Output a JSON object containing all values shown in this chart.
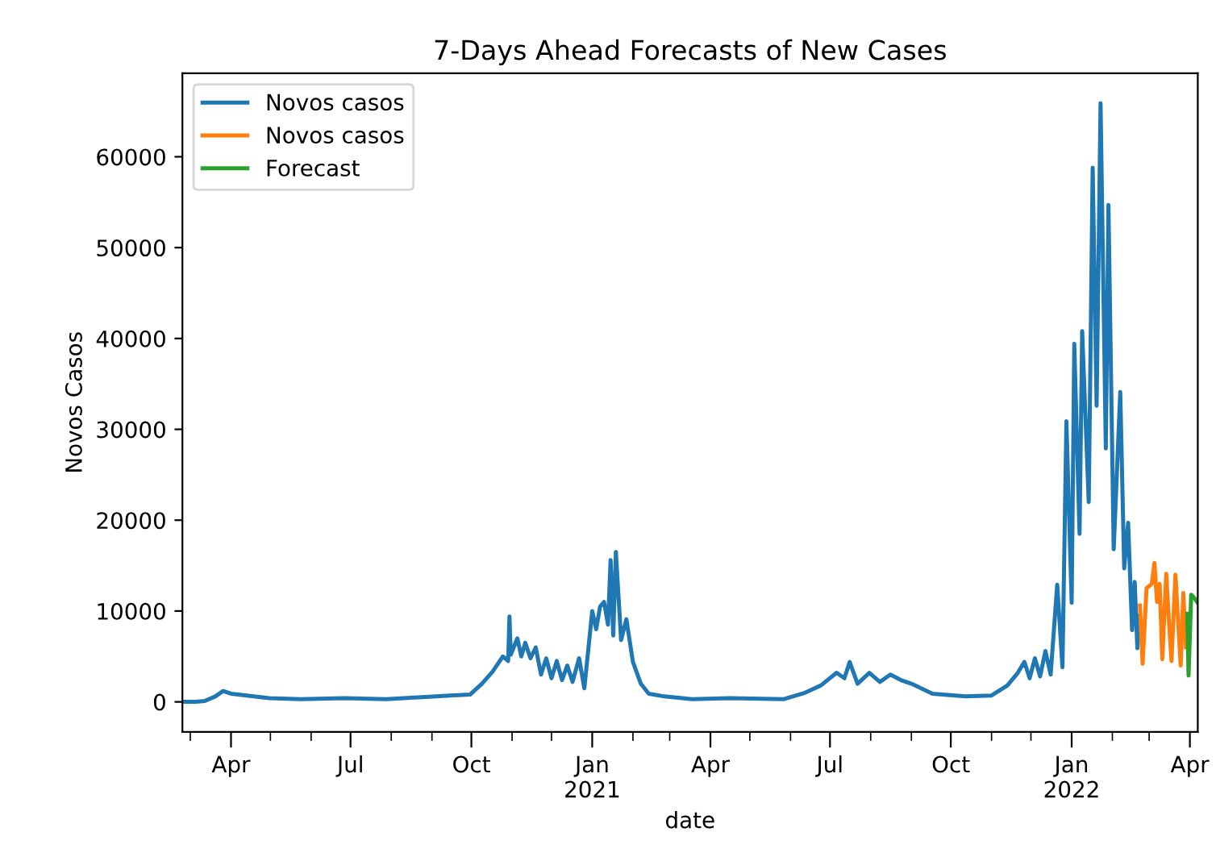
{
  "chart_data": {
    "type": "line",
    "title": "7-Days Ahead Forecasts of New Cases",
    "xlabel": "date",
    "ylabel": "Novos Casos",
    "series": [
      {
        "name": "Novos casos",
        "color": "#1f77b4",
        "x": [
          "2020-02-24",
          "2020-03-05",
          "2020-03-12",
          "2020-03-20",
          "2020-03-26",
          "2020-04-01",
          "2020-04-13",
          "2020-04-30",
          "2020-05-24",
          "2020-06-26",
          "2020-07-28",
          "2020-08-22",
          "2020-09-15",
          "2020-09-30",
          "2020-10-09",
          "2020-10-17",
          "2020-10-25",
          "2020-10-29",
          "2020-10-30",
          "2020-10-31",
          "2020-11-05",
          "2020-11-08",
          "2020-11-11",
          "2020-11-15",
          "2020-11-19",
          "2020-11-23",
          "2020-11-27",
          "2020-12-01",
          "2020-12-05",
          "2020-12-09",
          "2020-12-13",
          "2020-12-17",
          "2020-12-22",
          "2020-12-26",
          "2021-01-01",
          "2021-01-04",
          "2021-01-07",
          "2021-01-10",
          "2021-01-13",
          "2021-01-15",
          "2021-01-17",
          "2021-01-19",
          "2021-01-23",
          "2021-01-27",
          "2021-02-01",
          "2021-02-07",
          "2021-02-13",
          "2021-02-25",
          "2021-03-18",
          "2021-04-16",
          "2021-05-27",
          "2021-06-12",
          "2021-06-24",
          "2021-07-06",
          "2021-07-12",
          "2021-07-16",
          "2021-07-22",
          "2021-07-31",
          "2021-08-08",
          "2021-08-16",
          "2021-08-24",
          "2021-09-01",
          "2021-09-17",
          "2021-10-12",
          "2021-11-01",
          "2021-11-13",
          "2021-11-21",
          "2021-11-26",
          "2021-11-30",
          "2021-12-04",
          "2021-12-08",
          "2021-12-12",
          "2021-12-16",
          "2021-12-21",
          "2021-12-25",
          "2021-12-28",
          "2022-01-01",
          "2022-01-03",
          "2022-01-07",
          "2022-01-09",
          "2022-01-14",
          "2022-01-17",
          "2022-01-20",
          "2022-01-23",
          "2022-01-27",
          "2022-01-29",
          "2022-02-02",
          "2022-02-07",
          "2022-02-10",
          "2022-02-13",
          "2022-02-16",
          "2022-02-18",
          "2022-02-20",
          "2022-02-21"
        ],
        "values": [
          0,
          0,
          100,
          600,
          1200,
          900,
          700,
          400,
          300,
          400,
          300,
          500,
          700,
          800,
          2000,
          3300,
          5000,
          4500,
          9400,
          5200,
          7000,
          5000,
          6500,
          4800,
          6000,
          3000,
          4800,
          2600,
          4500,
          2400,
          4000,
          2200,
          4800,
          1500,
          10000,
          8000,
          10500,
          11000,
          8500,
          15600,
          7300,
          16500,
          6800,
          9100,
          4400,
          2000,
          900,
          600,
          300,
          400,
          300,
          1000,
          1800,
          3200,
          2600,
          4400,
          2000,
          3200,
          2200,
          3000,
          2400,
          2000,
          900,
          600,
          700,
          1800,
          3200,
          4400,
          2600,
          4800,
          2800,
          5600,
          3000,
          12900,
          3800,
          30900,
          10900,
          39400,
          18500,
          40800,
          22000,
          58800,
          32600,
          65900,
          27900,
          54700,
          16800,
          34100,
          14700,
          19700,
          7900,
          13200,
          5900,
          9500
        ]
      },
      {
        "name": "Novos casos",
        "color": "#ff7f0e",
        "x": [
          "2022-02-22",
          "2022-02-24",
          "2022-02-27",
          "2022-03-03",
          "2022-03-05",
          "2022-03-07",
          "2022-03-09",
          "2022-03-11",
          "2022-03-14",
          "2022-03-16",
          "2022-03-18",
          "2022-03-21",
          "2022-03-23",
          "2022-03-25",
          "2022-03-27",
          "2022-03-29"
        ],
        "values": [
          10600,
          4200,
          12500,
          13000,
          15300,
          11000,
          13000,
          4700,
          14100,
          9000,
          4500,
          14000,
          9000,
          4000,
          12000,
          6000
        ]
      },
      {
        "name": "Forecast",
        "color": "#2ca02c",
        "x": [
          "2022-03-30",
          "2022-03-31",
          "2022-04-02",
          "2022-04-04",
          "2022-04-07"
        ],
        "values": [
          9700,
          2900,
          11800,
          11500,
          10900
        ]
      }
    ],
    "xlim": [
      "2020-02-24",
      "2022-04-07"
    ],
    "xticks": [
      {
        "value": "2020-03-01",
        "label": null
      },
      {
        "value": "2020-04-01",
        "label": "Apr"
      },
      {
        "value": "2020-05-01",
        "label": null
      },
      {
        "value": "2020-06-01",
        "label": null
      },
      {
        "value": "2020-07-01",
        "label": "Jul"
      },
      {
        "value": "2020-08-01",
        "label": null
      },
      {
        "value": "2020-09-01",
        "label": null
      },
      {
        "value": "2020-10-01",
        "label": "Oct"
      },
      {
        "value": "2020-11-01",
        "label": null
      },
      {
        "value": "2020-12-01",
        "label": null
      },
      {
        "value": "2021-01-01",
        "label": "Jan\n2021"
      },
      {
        "value": "2021-02-01",
        "label": null
      },
      {
        "value": "2021-03-01",
        "label": null
      },
      {
        "value": "2021-04-01",
        "label": "Apr"
      },
      {
        "value": "2021-05-01",
        "label": null
      },
      {
        "value": "2021-06-01",
        "label": null
      },
      {
        "value": "2021-07-01",
        "label": "Jul"
      },
      {
        "value": "2021-08-01",
        "label": null
      },
      {
        "value": "2021-09-01",
        "label": null
      },
      {
        "value": "2021-10-01",
        "label": "Oct"
      },
      {
        "value": "2021-11-01",
        "label": null
      },
      {
        "value": "2021-12-01",
        "label": null
      },
      {
        "value": "2022-01-01",
        "label": "Jan\n2022"
      },
      {
        "value": "2022-02-01",
        "label": null
      },
      {
        "value": "2022-03-01",
        "label": null
      },
      {
        "value": "2022-04-01",
        "label": "Apr"
      }
    ],
    "ylim": [
      -3300,
      69200
    ],
    "yticks": [
      0,
      10000,
      20000,
      30000,
      40000,
      50000,
      60000
    ],
    "legend": "top left",
    "grid": false,
    "marker": "none",
    "line_style": "solid"
  }
}
